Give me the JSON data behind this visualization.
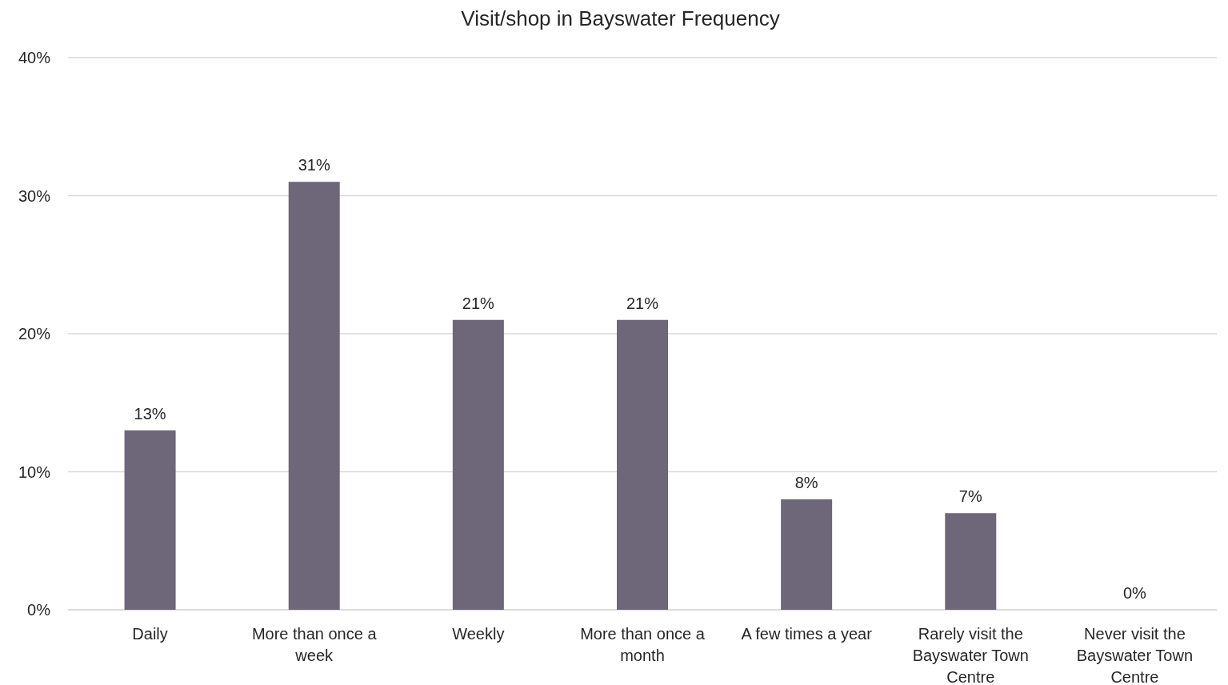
{
  "chart_data": {
    "type": "bar",
    "title": "Visit/shop in Bayswater Frequency",
    "categories": [
      "Daily",
      "More than once a week",
      "Weekly",
      "More than once a month",
      "A few times a year",
      "Rarely visit the Bayswater Town Centre",
      "Never visit the Bayswater Town Centre"
    ],
    "values": [
      13,
      31,
      21,
      21,
      8,
      7,
      0
    ],
    "color": "#6e6679",
    "ylim": [
      0,
      40
    ],
    "yticks": [
      {
        "value": 0,
        "label": "0%"
      },
      {
        "value": 10,
        "label": "10%"
      },
      {
        "value": 20,
        "label": "20%"
      },
      {
        "value": 30,
        "label": "30%"
      },
      {
        "value": 40,
        "label": "40%"
      }
    ],
    "value_labels": [
      "13%",
      "31%",
      "21%",
      "21%",
      "8%",
      "7%",
      "0%"
    ],
    "grid": "y"
  }
}
